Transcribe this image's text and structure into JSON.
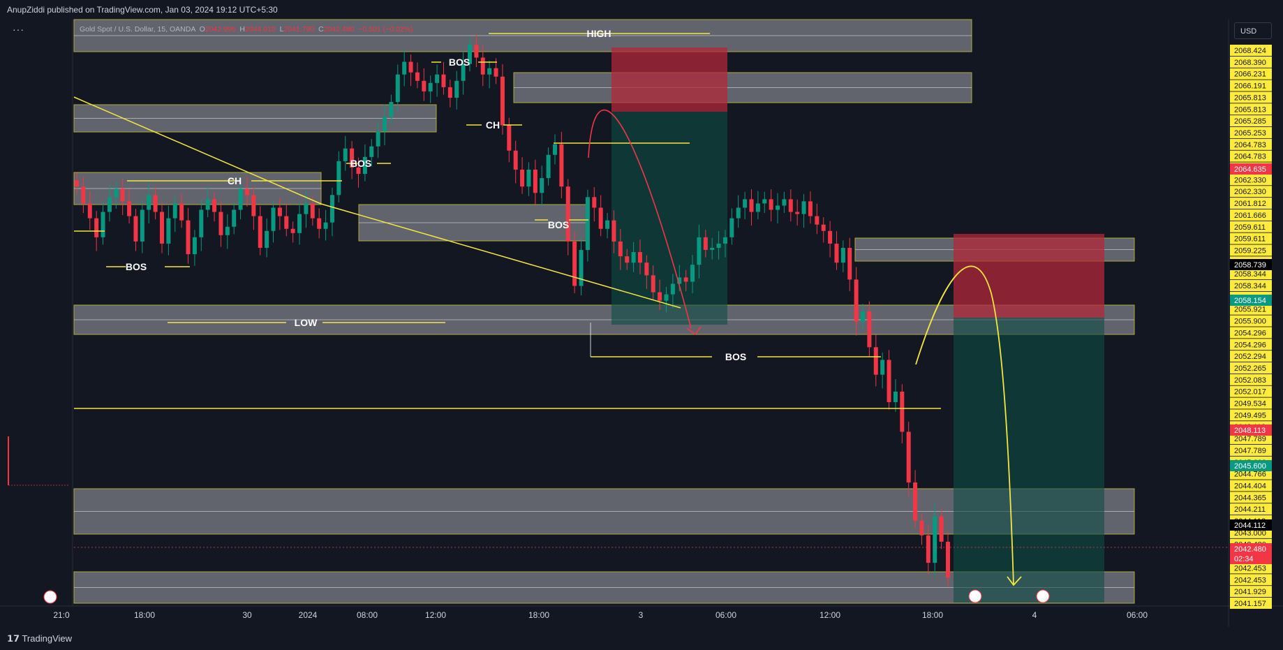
{
  "header": {
    "published": "AnupZiddi published on TradingView.com, Jan 03, 2024 19:12 UTC+5:30",
    "menu": "···"
  },
  "legend": {
    "symbol": "Gold Spot / U.S. Dollar, 15, OANDA",
    "o_label": "O",
    "o": "2042.996",
    "h_label": "H",
    "h": "2044.010",
    "l_label": "L",
    "l": "2041.790",
    "c_label": "C",
    "c": "2042.480",
    "chg": "−0.501 (−0.02%)"
  },
  "currency_button": "USD",
  "footer": {
    "brand": "TradingView"
  },
  "colors": {
    "background": "#131722",
    "bull": "#089981",
    "bear": "#f23645",
    "annotation": "#f5e642",
    "zone_fill": "#7b7e87",
    "axis_tag": "#ffeb3b"
  },
  "chart_data": {
    "type": "candlestick",
    "instrument": "Gold Spot / U.S. Dollar, 15, OANDA",
    "ylim": [
      2041.157,
      2068.9
    ],
    "price_axis_labels": [
      "2068.424",
      "2068.390",
      "2066.231",
      "2066.191",
      "2065.813",
      "2065.813",
      "2065.285",
      "2065.253",
      "2064.783",
      "2064.783",
      "2064.635",
      "2062.330",
      "2062.330",
      "2061.812",
      "2061.666",
      "2059.611",
      "2059.611",
      "2059.225",
      "2058.739",
      "2058.344",
      "2058.344",
      "2058.154",
      "2055.921",
      "2055.900",
      "2054.296",
      "2054.296",
      "2052.294",
      "2052.265",
      "2052.083",
      "2052.017",
      "2049.534",
      "2049.495",
      "2048.113",
      "2047.789",
      "2047.789",
      "2045.600",
      "2044.766",
      "2044.404",
      "2044.365",
      "2044.211",
      "2044.112",
      "2043.000",
      "2042.480",
      "02:34",
      "2042.453",
      "2042.453",
      "2041.929",
      "2041.157"
    ],
    "price_tags": [
      {
        "value": "2064.635",
        "style": "red"
      },
      {
        "value": "2058.739",
        "style": "dark"
      },
      {
        "value": "2058.154",
        "style": "green"
      },
      {
        "value": "2048.113",
        "style": "red"
      },
      {
        "value": "2045.600",
        "style": "green"
      },
      {
        "value": "2044.112",
        "style": "dark"
      },
      {
        "value": "2042.480",
        "style": "red",
        "sub": "02:34"
      }
    ],
    "time_axis_labels": [
      "21:0",
      "18:00",
      "30",
      "2024",
      "08:00",
      "12:00",
      "18:00",
      "3",
      "06:00",
      "12:00",
      "18:00",
      "4",
      "06:00"
    ],
    "annotation_labels": [
      "HIGH",
      "BOS",
      "CH",
      "BOS",
      "CH",
      "BOS",
      "BOS",
      "LOW",
      "BOS"
    ],
    "close_path": [
      2061.0,
      2060.2,
      2059.5,
      2058.6,
      2059.8,
      2060.5,
      2060.9,
      2060.3,
      2059.6,
      2058.4,
      2059.9,
      2060.6,
      2059.8,
      2058.3,
      2059.5,
      2060.2,
      2059.4,
      2057.8,
      2058.6,
      2059.9,
      2060.4,
      2059.8,
      2058.7,
      2059.1,
      2059.9,
      2060.9,
      2060.6,
      2059.6,
      2058.1,
      2058.9,
      2060.0,
      2059.6,
      2059.0,
      2058.8,
      2059.7,
      2060.2,
      2059.5,
      2059.0,
      2059.3,
      2060.6,
      2062.2,
      2062.8,
      2061.9,
      2061.6,
      2062.4,
      2062.9,
      2063.6,
      2064.3,
      2065.0,
      2066.3,
      2066.9,
      2066.4,
      2066.0,
      2065.5,
      2065.9,
      2066.3,
      2065.7,
      2065.2,
      2066.0,
      2066.8,
      2067.7,
      2067.1,
      2066.3,
      2066.6,
      2066.2,
      2063.9,
      2062.7,
      2061.8,
      2061.0,
      2061.8,
      2060.7,
      2061.4,
      2062.5,
      2063.0,
      2061.0,
      2058.4,
      2056.3,
      2058.0,
      2060.5,
      2060.0,
      2059.0,
      2059.4,
      2058.4,
      2057.7,
      2057.4,
      2057.9,
      2057.4,
      2056.8,
      2056.0,
      2055.6,
      2055.9,
      2056.4,
      2056.7,
      2056.5,
      2057.3,
      2058.6,
      2058.0,
      2058.1,
      2058.3,
      2058.6,
      2059.5,
      2060.0,
      2060.4,
      2059.8,
      2060.2,
      2060.4,
      2059.9,
      2060.1,
      2060.4,
      2059.8,
      2059.7,
      2060.3,
      2059.6,
      2059.2,
      2058.9,
      2058.3,
      2057.4,
      2058.1,
      2056.6,
      2054.6,
      2055.1,
      2053.4,
      2052.1,
      2052.8,
      2050.8,
      2051.3,
      2049.4,
      2047.0,
      2045.2,
      2044.5,
      2043.2,
      2045.4,
      2044.2,
      2042.5
    ]
  }
}
